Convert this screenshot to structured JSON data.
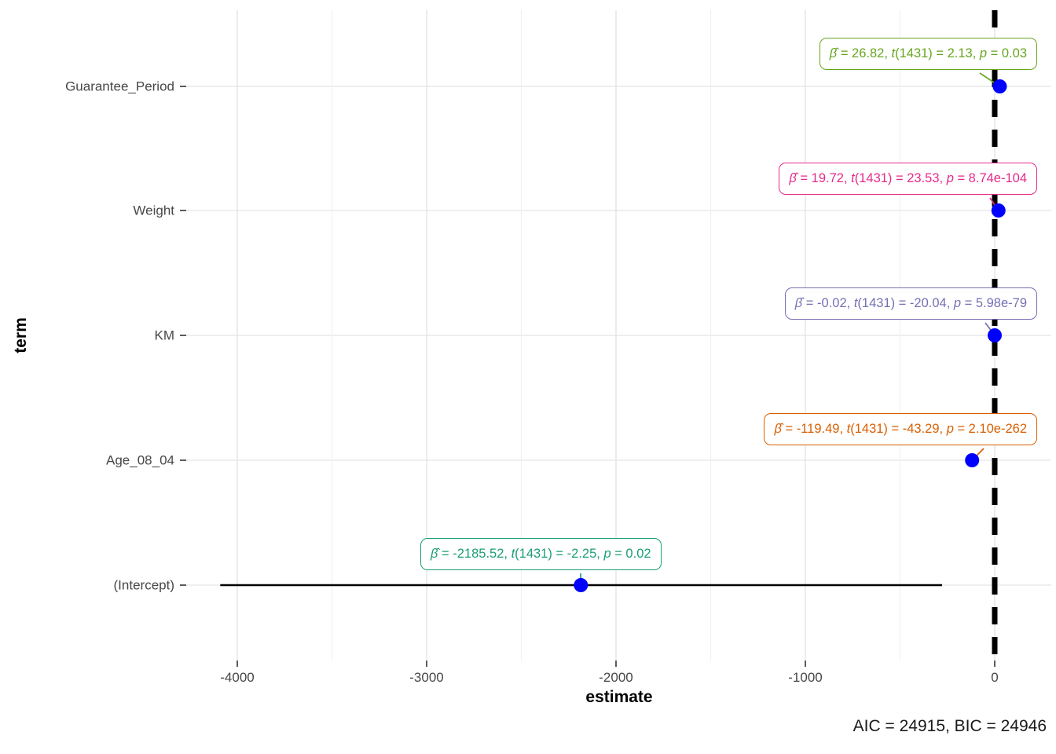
{
  "figure": {
    "caption": "AIC = 24915, BIC = 24946"
  },
  "chart_data": {
    "type": "scatter",
    "subtype": "regression-coefficient-forest-plot",
    "title": "",
    "xlabel": "estimate",
    "ylabel": "term",
    "x_ticks": [
      -4000,
      -3000,
      -2000,
      -1000,
      0
    ],
    "x_minor_ticks": [
      -3500,
      -2500,
      -1500,
      -500
    ],
    "xlim": [
      -4270,
      300
    ],
    "grid": true,
    "legend": false,
    "zero_line": {
      "x": 0,
      "style": "dashed",
      "color": "#000000"
    },
    "point_color": "#0000FF",
    "terms": [
      {
        "term": "Guarantee_Period",
        "estimate": 26.82,
        "statistic_t": 2.13,
        "df": 1431,
        "p": "0.03",
        "color": "#66A61E",
        "label": "β̂ = 26.82, t(1431) = 2.13, p = 0.03",
        "parts": [
          {
            "text": "β̂",
            "italic": true
          },
          {
            "text": " = 26.82, ",
            "italic": false
          },
          {
            "text": "t",
            "italic": true
          },
          {
            "text": "(1431) = 2.13, ",
            "italic": false
          },
          {
            "text": "p",
            "italic": true
          },
          {
            "text": " = 0.03",
            "italic": false
          }
        ]
      },
      {
        "term": "Weight",
        "estimate": 19.72,
        "statistic_t": 23.53,
        "df": 1431,
        "p": "8.74e-104",
        "color": "#E7298A",
        "label": "β̂ = 19.72, t(1431) = 23.53, p = 8.74e-104",
        "parts": [
          {
            "text": "β̂",
            "italic": true
          },
          {
            "text": " = 19.72, ",
            "italic": false
          },
          {
            "text": "t",
            "italic": true
          },
          {
            "text": "(1431) = 23.53, ",
            "italic": false
          },
          {
            "text": "p",
            "italic": true
          },
          {
            "text": " = 8.74e-104",
            "italic": false
          }
        ]
      },
      {
        "term": "KM",
        "estimate": -0.02,
        "statistic_t": -20.04,
        "df": 1431,
        "p": "5.98e-79",
        "color": "#7570B3",
        "label": "β̂ = -0.02, t(1431) = -20.04, p = 5.98e-79",
        "parts": [
          {
            "text": "β̂",
            "italic": true
          },
          {
            "text": " = -0.02, ",
            "italic": false
          },
          {
            "text": "t",
            "italic": true
          },
          {
            "text": "(1431) = -20.04, ",
            "italic": false
          },
          {
            "text": "p",
            "italic": true
          },
          {
            "text": " = 5.98e-79",
            "italic": false
          }
        ]
      },
      {
        "term": "Age_08_04",
        "estimate": -119.49,
        "statistic_t": -43.29,
        "df": 1431,
        "p": "2.10e-262",
        "color": "#D95F02",
        "label": "β̂ = -119.49, t(1431) = -43.29, p = 2.10e-262",
        "parts": [
          {
            "text": "β̂",
            "italic": true
          },
          {
            "text": " = -119.49, ",
            "italic": false
          },
          {
            "text": "t",
            "italic": true
          },
          {
            "text": "(1431) = -43.29, ",
            "italic": false
          },
          {
            "text": "p",
            "italic": true
          },
          {
            "text": " = 2.10e-262",
            "italic": false
          }
        ]
      },
      {
        "term": "(Intercept)",
        "estimate": -2185.52,
        "ci": [
          -4090,
          -278
        ],
        "statistic_t": -2.25,
        "df": 1431,
        "p": "0.02",
        "color": "#1B9E77",
        "label": "β̂ = -2185.52, t(1431) = -2.25, p = 0.02",
        "parts": [
          {
            "text": "β̂",
            "italic": true
          },
          {
            "text": " = -2185.52, ",
            "italic": false
          },
          {
            "text": "t",
            "italic": true
          },
          {
            "text": "(1431) = -2.25, ",
            "italic": false
          },
          {
            "text": "p",
            "italic": true
          },
          {
            "text": " = 0.02",
            "italic": false
          }
        ]
      }
    ]
  }
}
